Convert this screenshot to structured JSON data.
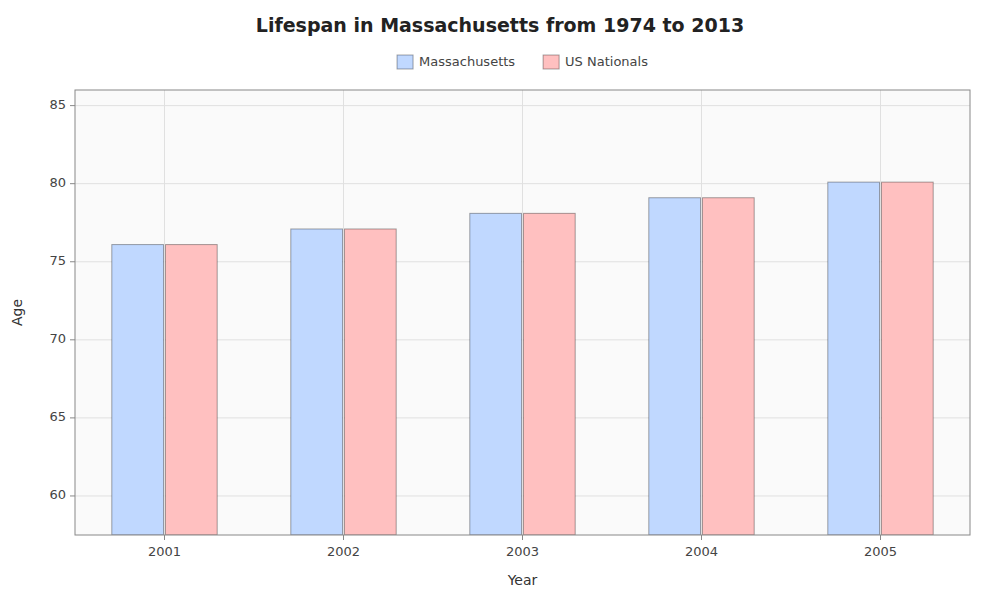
{
  "chart_data": {
    "type": "bar",
    "title": "Lifespan in Massachusetts from 1974 to 2013",
    "xlabel": "Year",
    "ylabel": "Age",
    "categories": [
      "2001",
      "2002",
      "2003",
      "2004",
      "2005"
    ],
    "series": [
      {
        "name": "Massachusetts",
        "color": "#c0d8ff",
        "values": [
          76.1,
          77.1,
          78.1,
          79.1,
          80.1
        ]
      },
      {
        "name": "US Nationals",
        "color": "#ffc0c0",
        "values": [
          76.1,
          77.1,
          78.1,
          79.1,
          80.1
        ]
      }
    ],
    "ylim": [
      57.5,
      86
    ],
    "yticks": [
      60,
      65,
      70,
      75,
      80,
      85
    ],
    "grid": true,
    "legend": "top"
  }
}
